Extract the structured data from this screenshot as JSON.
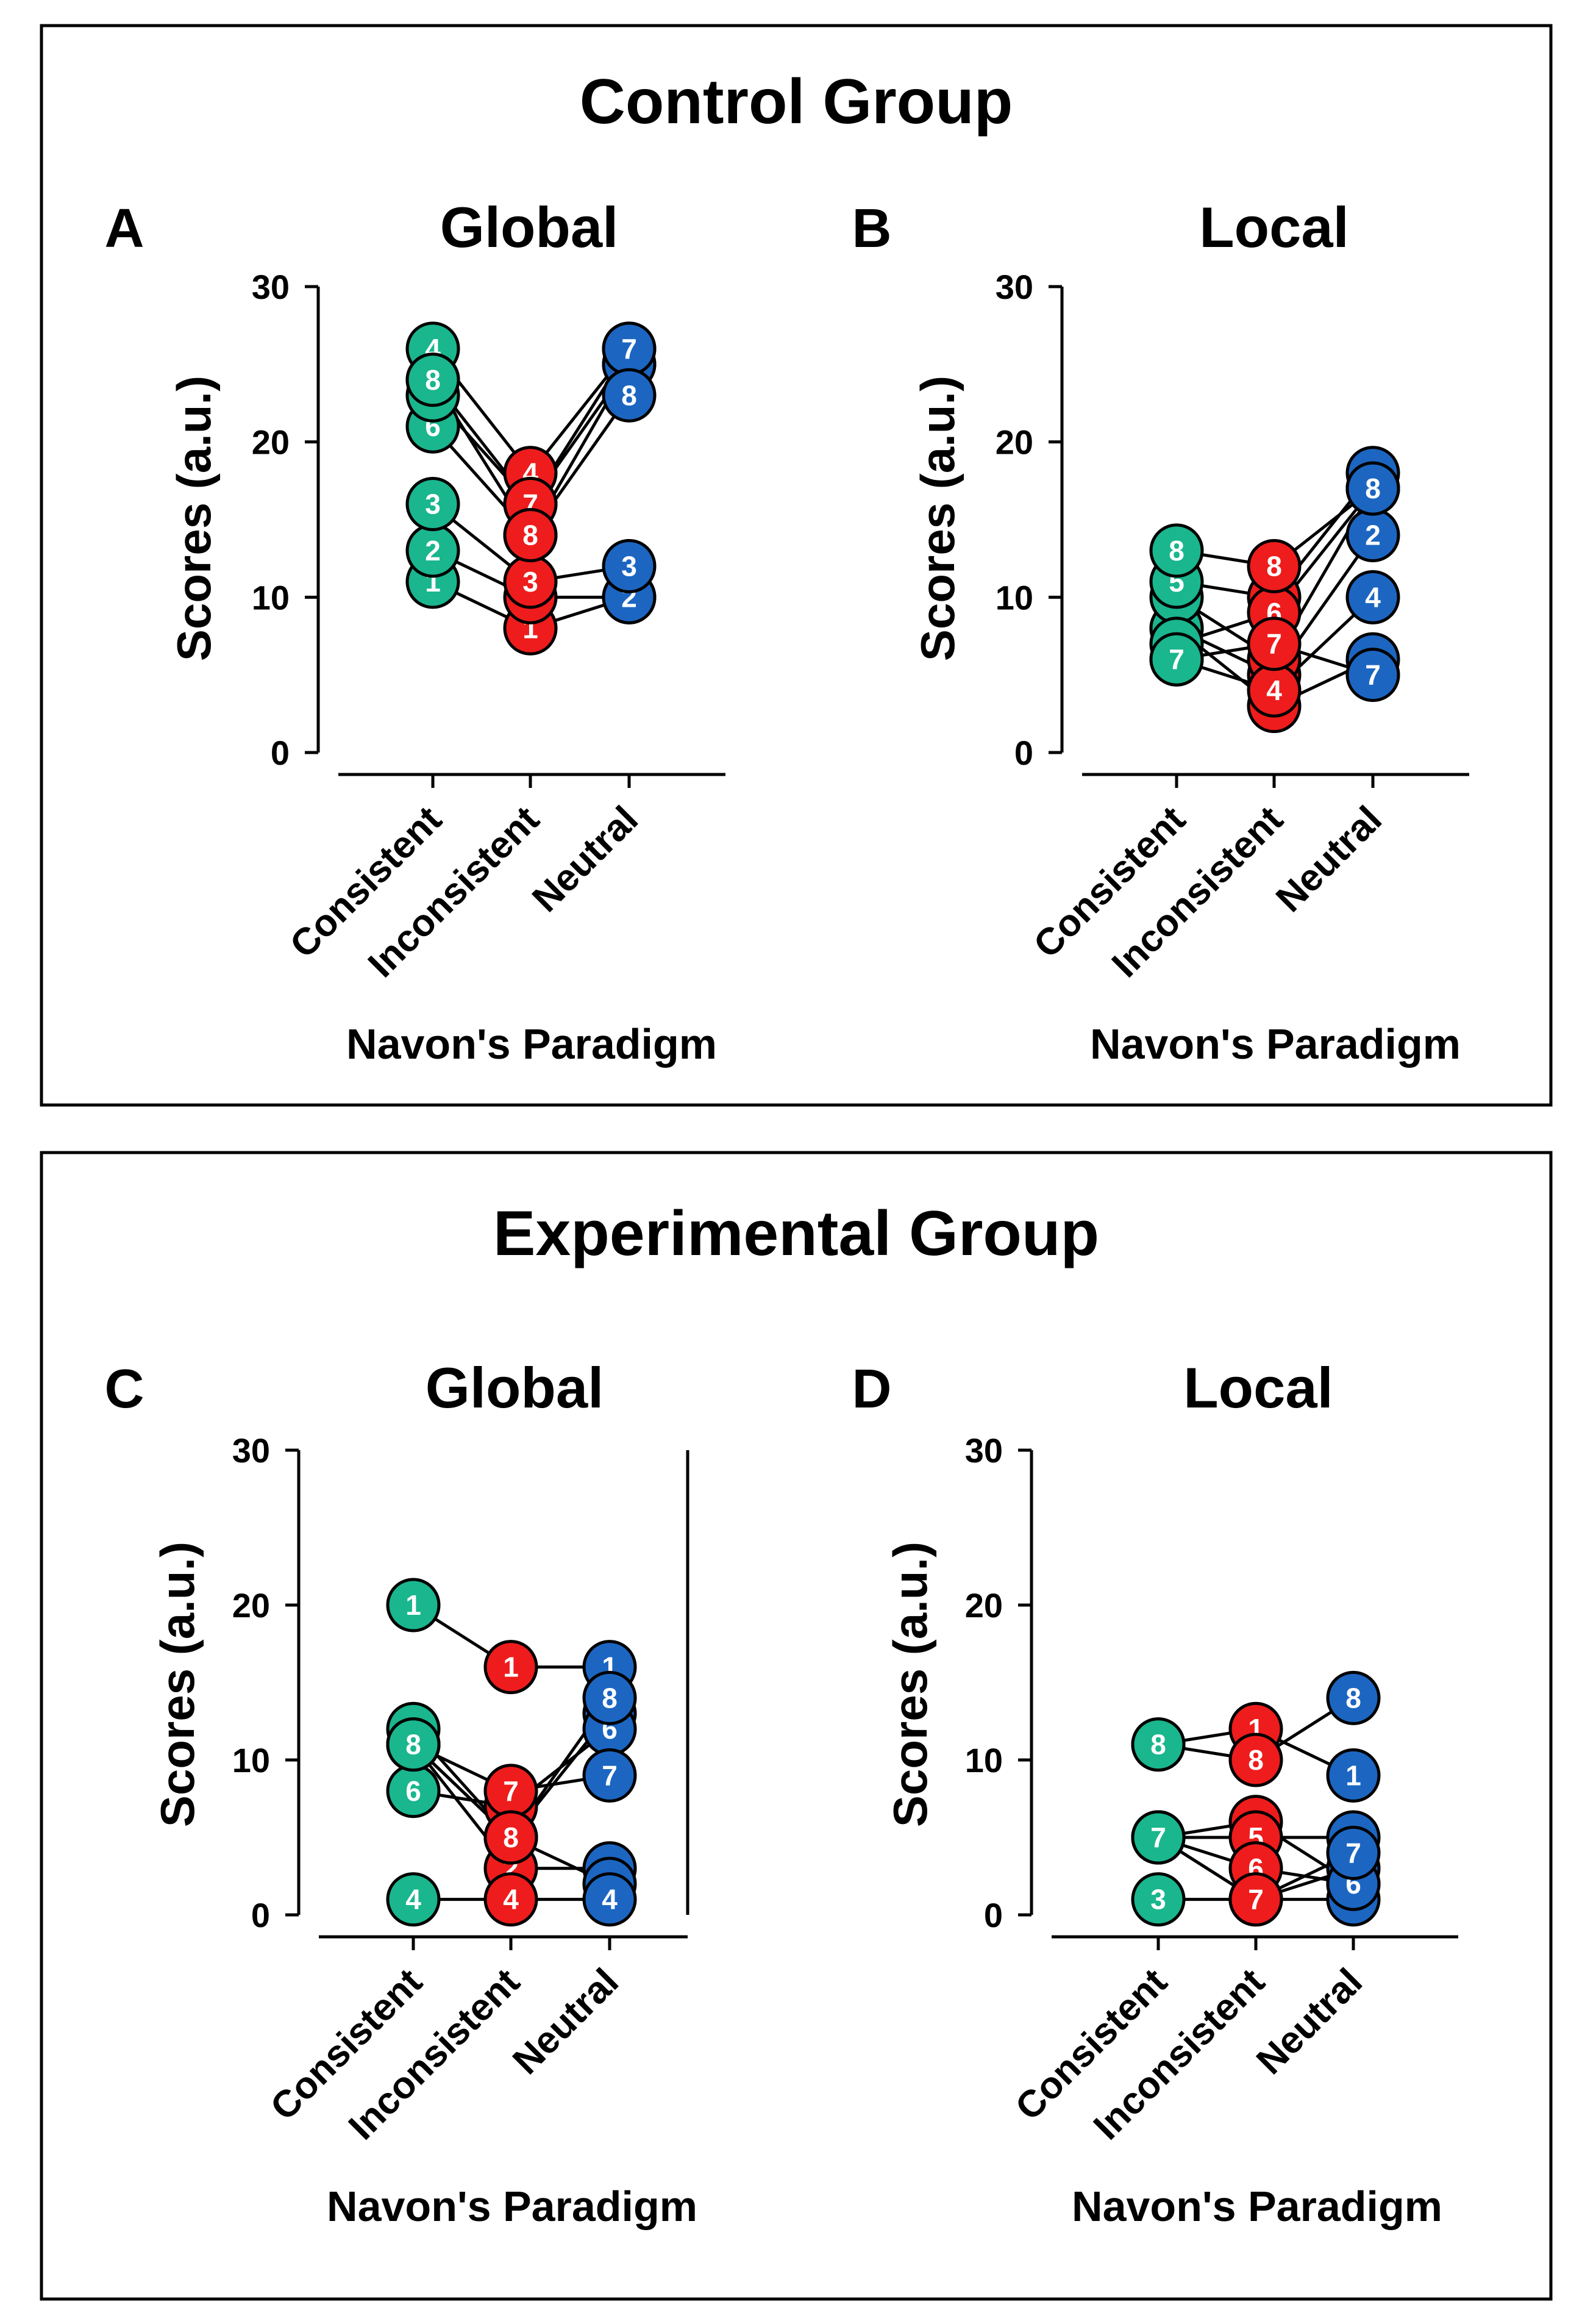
{
  "colors": {
    "consistent": "#1ab68e",
    "inconsistent": "#ee1c1c",
    "neutral": "#1c66c2",
    "axis": "#000000"
  },
  "groups": [
    {
      "title": "Control Group"
    },
    {
      "title": "Experimental Group"
    }
  ],
  "chart_data": [
    {
      "type": "scatter",
      "letter": "A",
      "title": "Global",
      "ylabel": "Scores (a.u.)",
      "xlabel": "Navon's Paradigm",
      "categories": [
        "Consistent",
        "Inconsistent",
        "Neutral"
      ],
      "ylim": [
        0,
        30
      ],
      "yticks": [
        0,
        10,
        20,
        30
      ],
      "right_spine": false,
      "subjects": [
        {
          "id": "1",
          "values": [
            11,
            8,
            10
          ]
        },
        {
          "id": "2",
          "values": [
            13,
            10,
            10
          ]
        },
        {
          "id": "3",
          "values": [
            16,
            11,
            12
          ]
        },
        {
          "id": "4",
          "values": [
            26,
            18,
            26
          ]
        },
        {
          "id": "5",
          "values": [
            24,
            16,
            25
          ]
        },
        {
          "id": "6",
          "values": [
            21,
            14,
            25
          ]
        },
        {
          "id": "7",
          "values": [
            23,
            16,
            26
          ]
        },
        {
          "id": "8",
          "values": [
            24,
            14,
            23
          ]
        }
      ]
    },
    {
      "type": "scatter",
      "letter": "B",
      "title": "Local",
      "ylabel": "Scores (a.u.)",
      "xlabel": "Navon's Paradigm",
      "categories": [
        "Consistent",
        "Inconsistent",
        "Neutral"
      ],
      "ylim": [
        0,
        30
      ],
      "yticks": [
        0,
        10,
        20,
        30
      ],
      "right_spine": false,
      "subjects": [
        {
          "id": "1",
          "values": [
            8,
            3,
            6
          ]
        },
        {
          "id": "2",
          "values": [
            8,
            5,
            14
          ]
        },
        {
          "id": "3",
          "values": [
            10,
            6,
            17
          ]
        },
        {
          "id": "4",
          "values": [
            6,
            4,
            10
          ]
        },
        {
          "id": "5",
          "values": [
            11,
            10,
            18
          ]
        },
        {
          "id": "6",
          "values": [
            7,
            9,
            17
          ]
        },
        {
          "id": "7",
          "values": [
            6,
            7,
            5
          ]
        },
        {
          "id": "8",
          "values": [
            13,
            12,
            17
          ]
        }
      ]
    },
    {
      "type": "scatter",
      "letter": "C",
      "title": "Global",
      "ylabel": "Scores (a.u.)",
      "xlabel": "Navon's Paradigm",
      "categories": [
        "Consistent",
        "Inconsistent",
        "Neutral"
      ],
      "ylim": [
        0,
        30
      ],
      "yticks": [
        0,
        10,
        20,
        30
      ],
      "right_spine": true,
      "subjects": [
        {
          "id": "1",
          "values": [
            20,
            16,
            16
          ]
        },
        {
          "id": "2",
          "values": [
            11,
            3,
            3
          ]
        },
        {
          "id": "3",
          "values": [
            11,
            5,
            2
          ]
        },
        {
          "id": "4",
          "values": [
            1,
            1,
            1
          ]
        },
        {
          "id": "5",
          "values": [
            12,
            5,
            13
          ]
        },
        {
          "id": "6",
          "values": [
            8,
            7,
            12
          ]
        },
        {
          "id": "7",
          "values": [
            11,
            8,
            9
          ]
        },
        {
          "id": "8",
          "values": [
            11,
            5,
            14
          ]
        }
      ]
    },
    {
      "type": "scatter",
      "letter": "D",
      "title": "Local",
      "ylabel": "Scores (a.u.)",
      "xlabel": "Navon's Paradigm",
      "categories": [
        "Consistent",
        "Inconsistent",
        "Neutral"
      ],
      "ylim": [
        0,
        30
      ],
      "yticks": [
        0,
        10,
        20,
        30
      ],
      "right_spine": false,
      "subjects": [
        {
          "id": "1",
          "values": [
            11,
            12,
            9
          ]
        },
        {
          "id": "2",
          "values": [
            5,
            6,
            2
          ]
        },
        {
          "id": "3",
          "values": [
            1,
            1,
            1
          ]
        },
        {
          "id": "4",
          "values": [
            5,
            1,
            3
          ]
        },
        {
          "id": "5",
          "values": [
            5,
            5,
            5
          ]
        },
        {
          "id": "6",
          "values": [
            5,
            3,
            2
          ]
        },
        {
          "id": "7",
          "values": [
            5,
            1,
            4
          ]
        },
        {
          "id": "8",
          "values": [
            11,
            10,
            14
          ]
        }
      ]
    }
  ]
}
